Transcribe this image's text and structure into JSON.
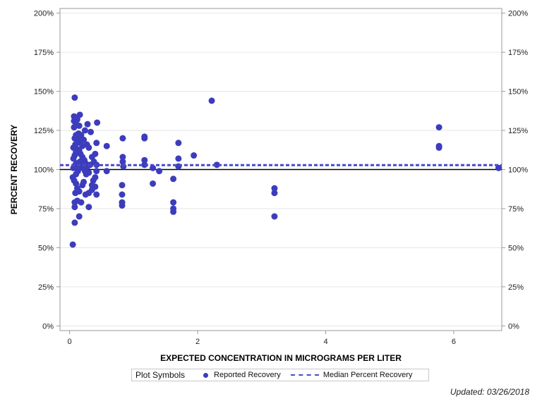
{
  "chart_data": {
    "type": "scatter",
    "title": "",
    "xlabel": "EXPECTED CONCENTRATION IN MICROGRAMS PER LITER",
    "ylabel": "PERCENT RECOVERY",
    "xlim": [
      -0.15,
      6.75
    ],
    "ylim": [
      -3,
      203
    ],
    "x_ticks": [
      0,
      2,
      4,
      6
    ],
    "x_tick_labels": [
      "0",
      "2",
      "4",
      "6"
    ],
    "y_ticks": [
      0,
      25,
      50,
      75,
      100,
      125,
      150,
      175,
      200
    ],
    "y_tick_labels": [
      "0%",
      "25%",
      "50%",
      "75%",
      "100%",
      "125%",
      "150%",
      "175%",
      "200%"
    ],
    "reference_line": 100,
    "median_percent_recovery": 102.8,
    "series": [
      {
        "name": "Reported Recovery",
        "color": "#3c3cbc",
        "points": [
          [
            0.05,
            52
          ],
          [
            0.08,
            66
          ],
          [
            0.15,
            70
          ],
          [
            0.08,
            76
          ],
          [
            0.08,
            79
          ],
          [
            0.09,
            85
          ],
          [
            0.12,
            80
          ],
          [
            0.18,
            79
          ],
          [
            0.05,
            95
          ],
          [
            0.07,
            93
          ],
          [
            0.1,
            91
          ],
          [
            0.12,
            88
          ],
          [
            0.15,
            86
          ],
          [
            0.2,
            90
          ],
          [
            0.22,
            92
          ],
          [
            0.1,
            97
          ],
          [
            0.13,
            99
          ],
          [
            0.06,
            101
          ],
          [
            0.09,
            103
          ],
          [
            0.11,
            104
          ],
          [
            0.14,
            102
          ],
          [
            0.16,
            105
          ],
          [
            0.19,
            103
          ],
          [
            0.21,
            101
          ],
          [
            0.24,
            99
          ],
          [
            0.26,
            97
          ],
          [
            0.3,
            98
          ],
          [
            0.06,
            107
          ],
          [
            0.08,
            109
          ],
          [
            0.1,
            111
          ],
          [
            0.12,
            113
          ],
          [
            0.15,
            112
          ],
          [
            0.17,
            110
          ],
          [
            0.2,
            108
          ],
          [
            0.23,
            106
          ],
          [
            0.25,
            104
          ],
          [
            0.28,
            102
          ],
          [
            0.32,
            103
          ],
          [
            0.06,
            114
          ],
          [
            0.09,
            116
          ],
          [
            0.12,
            118
          ],
          [
            0.14,
            120
          ],
          [
            0.17,
            117
          ],
          [
            0.2,
            115
          ],
          [
            0.22,
            119
          ],
          [
            0.08,
            120
          ],
          [
            0.1,
            122
          ],
          [
            0.14,
            123
          ],
          [
            0.18,
            122
          ],
          [
            0.24,
            125
          ],
          [
            0.07,
            127
          ],
          [
            0.1,
            129
          ],
          [
            0.15,
            128
          ],
          [
            0.07,
            131
          ],
          [
            0.12,
            132
          ],
          [
            0.07,
            134
          ],
          [
            0.16,
            135
          ],
          [
            0.08,
            146
          ],
          [
            0.28,
            129
          ],
          [
            0.33,
            124
          ],
          [
            0.27,
            116
          ],
          [
            0.3,
            114
          ],
          [
            0.35,
            108
          ],
          [
            0.38,
            105
          ],
          [
            0.4,
            110
          ],
          [
            0.42,
            117
          ],
          [
            0.43,
            130
          ],
          [
            0.42,
            103
          ],
          [
            0.42,
            99
          ],
          [
            0.4,
            95
          ],
          [
            0.37,
            93
          ],
          [
            0.35,
            90
          ],
          [
            0.4,
            89
          ],
          [
            0.35,
            87
          ],
          [
            0.3,
            85
          ],
          [
            0.42,
            84
          ],
          [
            0.25,
            84
          ],
          [
            0.3,
            76
          ],
          [
            0.58,
            115
          ],
          [
            0.58,
            99
          ],
          [
            0.83,
            120
          ],
          [
            0.83,
            108
          ],
          [
            0.83,
            105
          ],
          [
            0.84,
            102
          ],
          [
            0.82,
            90
          ],
          [
            0.82,
            84
          ],
          [
            0.82,
            79
          ],
          [
            0.82,
            77
          ],
          [
            1.17,
            120
          ],
          [
            1.17,
            121
          ],
          [
            1.17,
            106
          ],
          [
            1.17,
            103
          ],
          [
            1.3,
            101
          ],
          [
            1.3,
            91
          ],
          [
            1.4,
            99
          ],
          [
            1.62,
            94
          ],
          [
            1.62,
            79
          ],
          [
            1.62,
            75
          ],
          [
            1.62,
            73
          ],
          [
            1.7,
            117
          ],
          [
            1.7,
            107
          ],
          [
            1.7,
            102
          ],
          [
            1.94,
            109
          ],
          [
            2.22,
            144
          ],
          [
            2.3,
            103
          ],
          [
            3.2,
            88
          ],
          [
            3.2,
            85
          ],
          [
            3.2,
            70
          ],
          [
            5.77,
            127
          ],
          [
            5.77,
            115
          ],
          [
            5.77,
            114
          ],
          [
            6.7,
            101
          ]
        ]
      }
    ]
  },
  "legend": {
    "title": "Plot Symbols",
    "items": [
      {
        "label": "Reported Recovery"
      },
      {
        "label": "Median Percent Recovery"
      }
    ]
  },
  "colors": {
    "marker": "#3c3cbc",
    "median_line": "#4a4ac8",
    "reference_line": "#000000",
    "grid": "#e6e6e6",
    "frame": "#9a9a9a"
  },
  "footer": {
    "updated": "Updated: 03/26/2018"
  }
}
